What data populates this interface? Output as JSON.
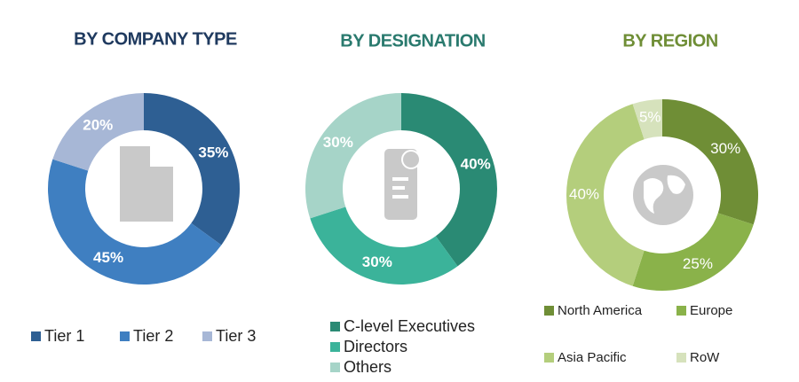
{
  "chart_data": [
    {
      "type": "pie",
      "title": "BY COMPANY TYPE",
      "categories": [
        "Tier 1",
        "Tier 2",
        "Tier 3"
      ],
      "values": [
        35,
        45,
        20
      ],
      "value_labels": [
        "35%",
        "45%",
        "20%"
      ],
      "colors": [
        "#2e5f93",
        "#3f7fc1",
        "#a7b7d6"
      ]
    },
    {
      "type": "pie",
      "title": "BY DESIGNATION",
      "categories": [
        "C-level Executives",
        "Directors",
        "Others"
      ],
      "values": [
        40,
        30,
        30
      ],
      "value_labels": [
        "40%",
        "30%",
        "30%"
      ],
      "colors": [
        "#2a8a74",
        "#3bb39a",
        "#a6d4c8"
      ]
    },
    {
      "type": "pie",
      "title": "BY REGION",
      "categories": [
        "North America",
        "Europe",
        "Asia Pacific",
        "RoW"
      ],
      "values": [
        30,
        25,
        40,
        5
      ],
      "value_labels": [
        "30%",
        "25%",
        "40%",
        "5%"
      ],
      "colors": [
        "#6f8e36",
        "#8ab24a",
        "#b4ce7c",
        "#d6e2bc"
      ]
    }
  ]
}
